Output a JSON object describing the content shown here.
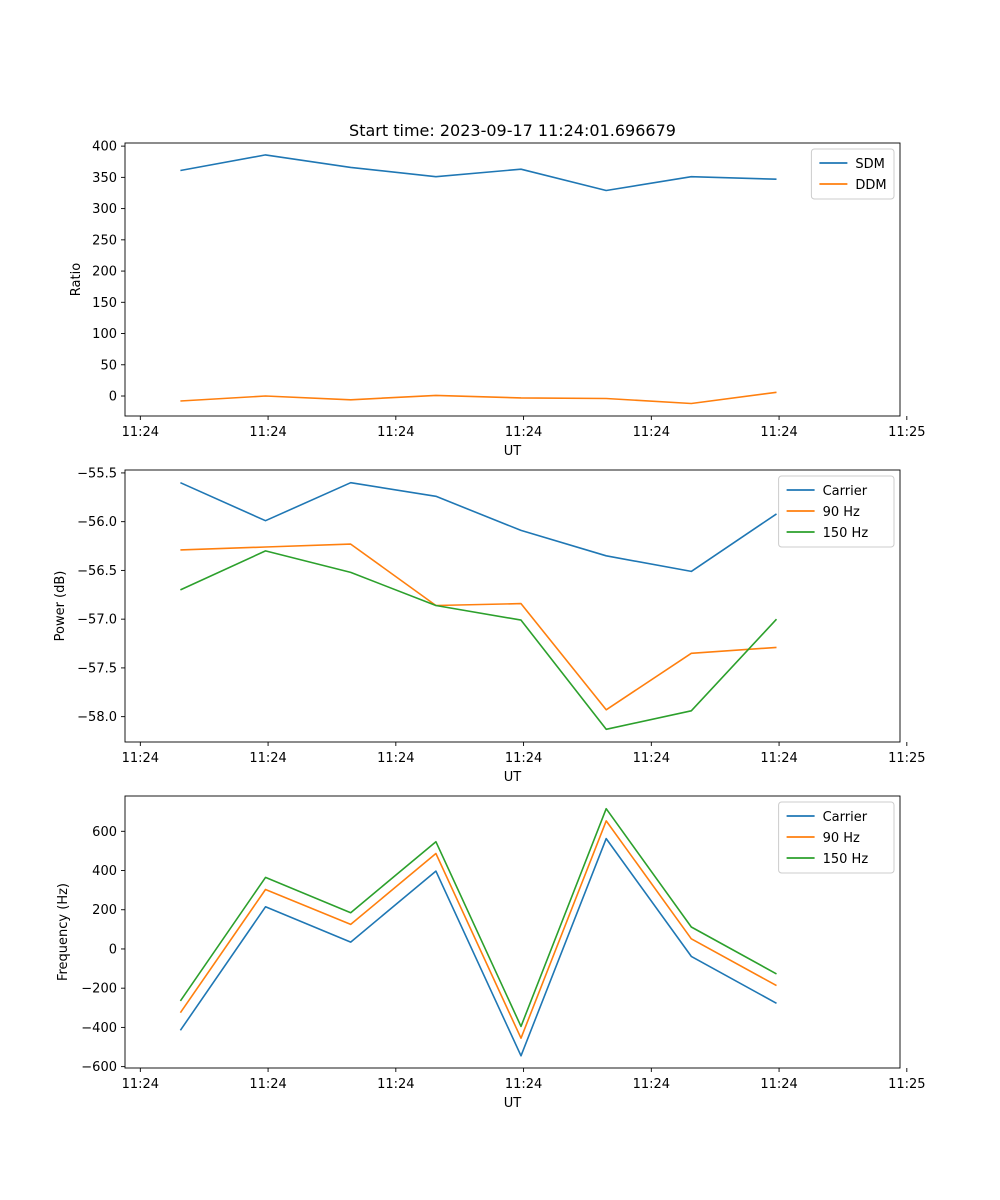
{
  "figure_title": "Start time: 2023-09-17 11:24:01.696679",
  "chart_data": [
    {
      "type": "line",
      "title": "Start time: 2023-09-17 11:24:01.696679",
      "xlabel": "UT",
      "ylabel": "Ratio",
      "x": [
        1,
        2,
        3,
        4,
        5,
        6,
        7,
        8
      ],
      "xlim": [
        0.35,
        9.45
      ],
      "x_ticks": [
        0.53,
        2.03,
        3.53,
        5.03,
        6.53,
        8.03,
        9.53
      ],
      "x_tick_labels": [
        "11:24",
        "11:24",
        "11:24",
        "11:24",
        "11:24",
        "11:24",
        "11:25"
      ],
      "ylim": [
        -32,
        405
      ],
      "y_ticks": [
        0,
        50,
        100,
        150,
        200,
        250,
        300,
        350,
        400
      ],
      "y_tick_labels": [
        "0",
        "50",
        "100",
        "150",
        "200",
        "250",
        "300",
        "350",
        "400"
      ],
      "legend": "top-right",
      "series": [
        {
          "name": "SDM",
          "color": "#1f77b4",
          "values": [
            361,
            386,
            366,
            351,
            363,
            329,
            351,
            347
          ]
        },
        {
          "name": "DDM",
          "color": "#ff7f0e",
          "values": [
            -8,
            0,
            -6,
            1,
            -3,
            -4,
            -12,
            6
          ]
        }
      ]
    },
    {
      "type": "line",
      "xlabel": "UT",
      "ylabel": "Power (dB)",
      "x": [
        1,
        2,
        3,
        4,
        5,
        6,
        7,
        8
      ],
      "xlim": [
        0.35,
        9.45
      ],
      "x_ticks": [
        0.53,
        2.03,
        3.53,
        5.03,
        6.53,
        8.03,
        9.53
      ],
      "x_tick_labels": [
        "11:24",
        "11:24",
        "11:24",
        "11:24",
        "11:24",
        "11:24",
        "11:25"
      ],
      "ylim": [
        -58.26,
        -55.47
      ],
      "y_ticks": [
        -58.0,
        -57.5,
        -57.0,
        -56.5,
        -56.0,
        -55.5
      ],
      "y_tick_labels": [
        "−58.0",
        "−57.5",
        "−57.0",
        "−56.5",
        "−56.0",
        "−55.5"
      ],
      "legend": "top-right",
      "series": [
        {
          "name": "Carrier",
          "color": "#1f77b4",
          "values": [
            -55.6,
            -55.99,
            -55.6,
            -55.74,
            -56.09,
            -56.35,
            -56.51,
            -55.92
          ]
        },
        {
          "name": "90 Hz",
          "color": "#ff7f0e",
          "values": [
            -56.29,
            -56.26,
            -56.23,
            -56.86,
            -56.84,
            -57.93,
            -57.35,
            -57.29
          ]
        },
        {
          "name": "150 Hz",
          "color": "#2ca02c",
          "values": [
            -56.7,
            -56.3,
            -56.52,
            -56.86,
            -57.01,
            -58.13,
            -57.94,
            -57.0
          ]
        }
      ]
    },
    {
      "type": "line",
      "xlabel": "UT",
      "ylabel": "Frequency (Hz)",
      "x": [
        1,
        2,
        3,
        4,
        5,
        6,
        7,
        8
      ],
      "xlim": [
        0.35,
        9.45
      ],
      "x_ticks": [
        0.53,
        2.03,
        3.53,
        5.03,
        6.53,
        8.03,
        9.53
      ],
      "x_tick_labels": [
        "11:24",
        "11:24",
        "11:24",
        "11:24",
        "11:24",
        "11:24",
        "11:25"
      ],
      "ylim": [
        -607,
        780
      ],
      "y_ticks": [
        -600,
        -400,
        -200,
        0,
        200,
        400,
        600
      ],
      "y_tick_labels": [
        "−600",
        "−400",
        "−200",
        "0",
        "200",
        "400",
        "600"
      ],
      "legend": "top-right",
      "series": [
        {
          "name": "Carrier",
          "color": "#1f77b4",
          "values": [
            -415,
            215,
            35,
            397,
            -545,
            563,
            -38,
            -277
          ]
        },
        {
          "name": "90 Hz",
          "color": "#ff7f0e",
          "values": [
            -325,
            303,
            125,
            487,
            -455,
            653,
            52,
            -187
          ]
        },
        {
          "name": "150 Hz",
          "color": "#2ca02c",
          "values": [
            -265,
            365,
            185,
            547,
            -395,
            715,
            112,
            -127
          ]
        }
      ]
    }
  ]
}
